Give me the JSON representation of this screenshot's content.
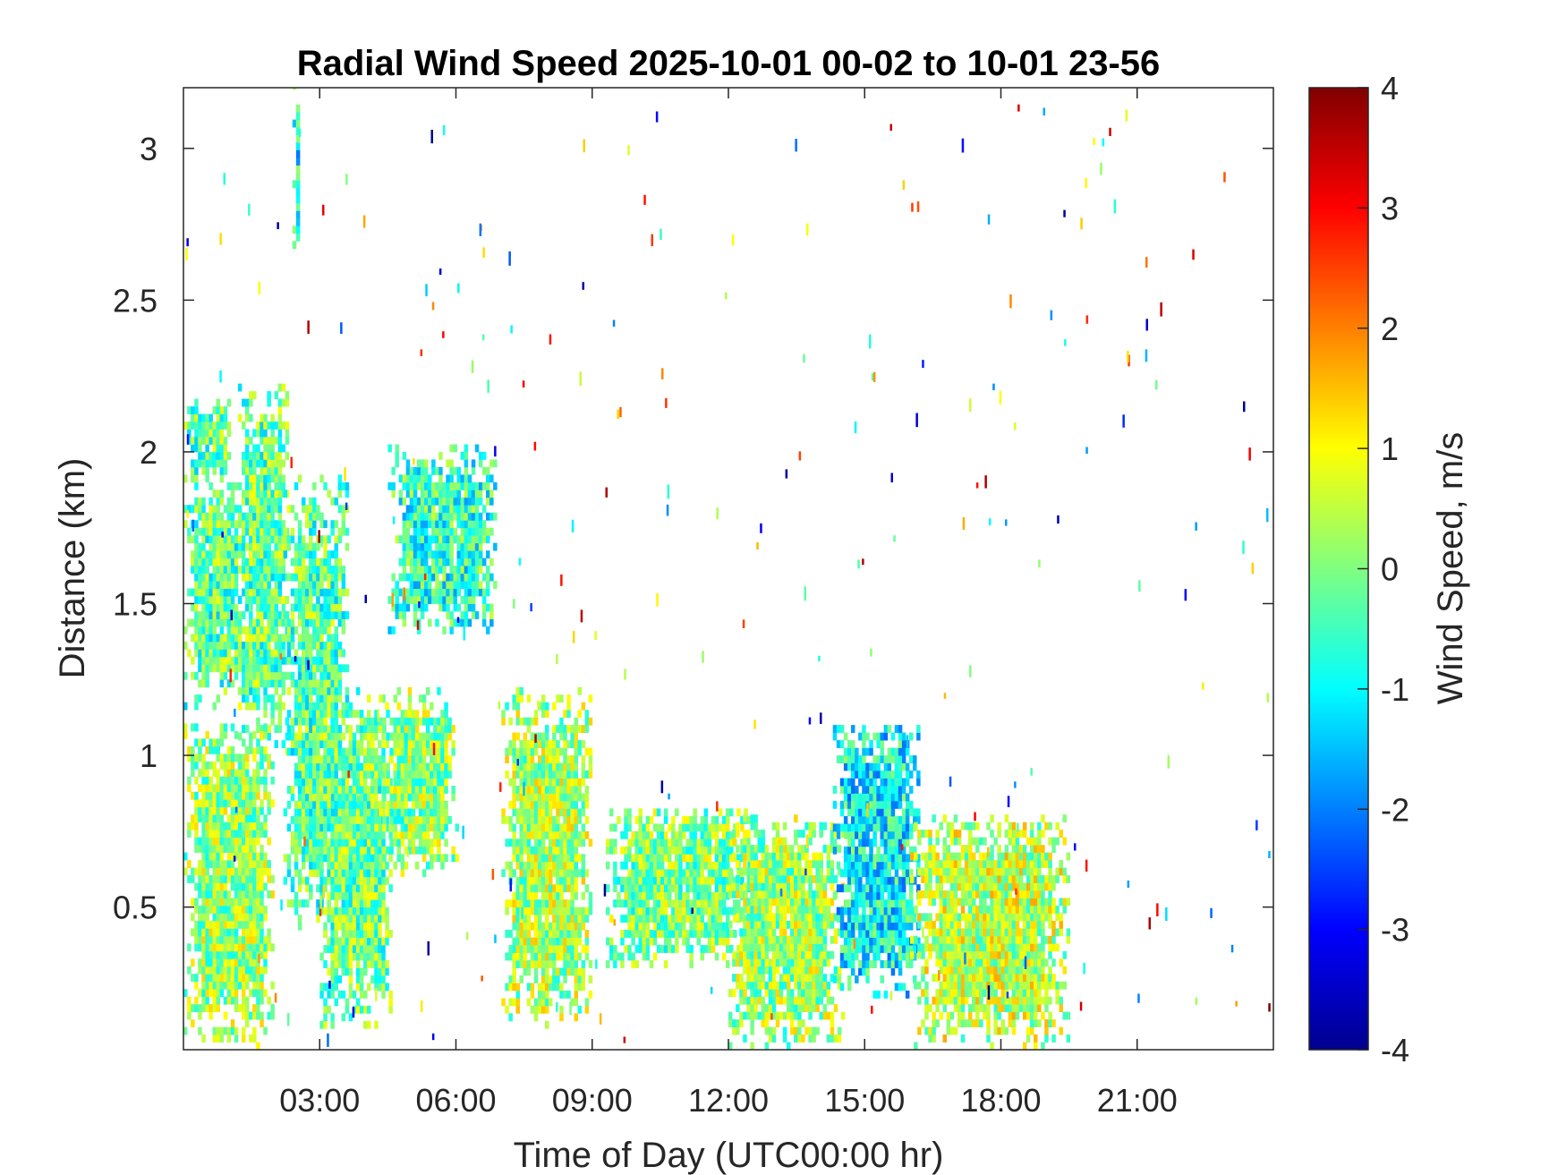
{
  "chart_data": {
    "type": "heatmap",
    "title": "Radial Wind Speed 2025-10-01 00-02 to 10-01 23-56",
    "xlabel": "Time of Day (UTC00:00 hr)",
    "ylabel": "Distance (km)",
    "colorbar_label": "Wind Speed, m/s",
    "xlim_hours": [
      0.0,
      24.0
    ],
    "ylim_km": [
      0.03,
      3.2
    ],
    "clim": [
      -4,
      4
    ],
    "colormap": "jet",
    "grid": false,
    "x_ticks": [
      {
        "hour": 3,
        "label": "03:00"
      },
      {
        "hour": 6,
        "label": "06:00"
      },
      {
        "hour": 9,
        "label": "09:00"
      },
      {
        "hour": 12,
        "label": "12:00"
      },
      {
        "hour": 15,
        "label": "15:00"
      },
      {
        "hour": 18,
        "label": "18:00"
      },
      {
        "hour": 21,
        "label": "21:00"
      }
    ],
    "y_ticks": [
      {
        "value": 0.5,
        "label": "0.5"
      },
      {
        "value": 1.0,
        "label": "1"
      },
      {
        "value": 1.5,
        "label": "1.5"
      },
      {
        "value": 2.0,
        "label": "2"
      },
      {
        "value": 2.5,
        "label": "2.5"
      },
      {
        "value": 3.0,
        "label": "3"
      }
    ],
    "colorbar_ticks": [
      {
        "value": 4,
        "label": "4"
      },
      {
        "value": 3,
        "label": "3"
      },
      {
        "value": 2,
        "label": "2"
      },
      {
        "value": 1,
        "label": "1"
      },
      {
        "value": 0,
        "label": "0"
      },
      {
        "value": -1,
        "label": "-1"
      },
      {
        "value": -2,
        "label": "-2"
      },
      {
        "value": -3,
        "label": "-3"
      },
      {
        "value": -4,
        "label": "-4"
      }
    ],
    "echo_regions": [
      {
        "t0": 0.0,
        "t1": 1.4,
        "d0": 1.15,
        "d1": 1.9,
        "mean_speed": -0.3
      },
      {
        "t0": 0.0,
        "t1": 1.0,
        "d0": 1.9,
        "d1": 2.15,
        "mean_speed": -0.2
      },
      {
        "t0": 1.2,
        "t1": 2.3,
        "d0": 1.0,
        "d1": 2.2,
        "mean_speed": -0.2
      },
      {
        "t0": 0.0,
        "t1": 2.0,
        "d0": 0.03,
        "d1": 1.1,
        "mean_speed": 0.2
      },
      {
        "t0": 2.2,
        "t1": 3.6,
        "d0": 0.4,
        "d1": 1.9,
        "mean_speed": -0.3
      },
      {
        "t0": 3.0,
        "t1": 4.6,
        "d0": 0.1,
        "d1": 1.2,
        "mean_speed": -0.1
      },
      {
        "t0": 4.3,
        "t1": 6.0,
        "d0": 0.6,
        "d1": 1.2,
        "mean_speed": 0.1
      },
      {
        "t0": 4.5,
        "t1": 6.9,
        "d0": 1.4,
        "d1": 2.0,
        "mean_speed": -0.6
      },
      {
        "t0": 2.4,
        "t1": 2.55,
        "d0": 2.62,
        "d1": 3.2,
        "mean_speed": -0.9
      },
      {
        "t0": 7.0,
        "t1": 9.0,
        "d0": 0.1,
        "d1": 1.2,
        "mean_speed": 0.3
      },
      {
        "t0": 9.3,
        "t1": 12.5,
        "d0": 0.3,
        "d1": 0.82,
        "mean_speed": 0.0
      },
      {
        "t0": 12.0,
        "t1": 14.5,
        "d0": 0.03,
        "d1": 0.8,
        "mean_speed": 0.2
      },
      {
        "t0": 14.3,
        "t1": 16.2,
        "d0": 0.2,
        "d1": 1.1,
        "mean_speed": -1.0
      },
      {
        "t0": 16.0,
        "t1": 19.5,
        "d0": 0.03,
        "d1": 0.8,
        "mean_speed": 0.5
      }
    ]
  },
  "colors": {
    "axis": "#262626",
    "background": "#ffffff"
  }
}
